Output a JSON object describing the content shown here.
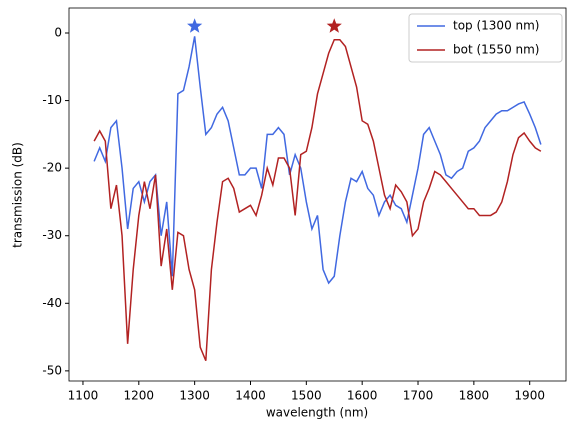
{
  "chart_data": {
    "type": "line",
    "xlabel": "wavelength (nm)",
    "ylabel": "transmission (dB)",
    "x": [
      1120,
      1130,
      1140,
      1150,
      1160,
      1170,
      1180,
      1190,
      1200,
      1210,
      1220,
      1230,
      1240,
      1250,
      1260,
      1270,
      1280,
      1290,
      1300,
      1310,
      1320,
      1330,
      1340,
      1350,
      1360,
      1370,
      1380,
      1390,
      1400,
      1410,
      1420,
      1430,
      1440,
      1450,
      1460,
      1470,
      1480,
      1490,
      1500,
      1510,
      1520,
      1530,
      1540,
      1550,
      1560,
      1570,
      1580,
      1590,
      1600,
      1610,
      1620,
      1630,
      1640,
      1650,
      1660,
      1670,
      1680,
      1690,
      1700,
      1710,
      1720,
      1730,
      1740,
      1750,
      1760,
      1770,
      1780,
      1790,
      1800,
      1810,
      1820,
      1830,
      1840,
      1850,
      1860,
      1870,
      1880,
      1890,
      1900,
      1910,
      1920
    ],
    "series": [
      {
        "name": "top (1300 nm)",
        "color": "#4169e1",
        "values": [
          -19,
          -17,
          -19,
          -14,
          -13,
          -20,
          -29,
          -23,
          -22,
          -25,
          -22,
          -21,
          -30,
          -25,
          -36,
          -9,
          -8.5,
          -5,
          -0.5,
          -8,
          -15,
          -14,
          -12,
          -11,
          -13,
          -17,
          -21,
          -21,
          -20,
          -20,
          -23,
          -15,
          -15,
          -14,
          -15,
          -21,
          -18,
          -20,
          -25,
          -29,
          -27,
          -35,
          -37,
          -36,
          -30,
          -25,
          -21.5,
          -22,
          -20.5,
          -23,
          -24,
          -27,
          -25,
          -24,
          -25.5,
          -26,
          -28,
          -24,
          -20,
          -15,
          -14,
          -16,
          -18,
          -21,
          -21.5,
          -20.5,
          -20,
          -17.5,
          -17,
          -16,
          -14,
          -13,
          -12,
          -11.5,
          -11.5,
          -11,
          -10.5,
          -10.2,
          -12,
          -14,
          -16.5
        ]
      },
      {
        "name": "bot (1550 nm)",
        "color": "#b22222",
        "values": [
          -16,
          -14.5,
          -16,
          -26,
          -22.5,
          -30,
          -46,
          -35,
          -27,
          -22,
          -26,
          -21,
          -34.5,
          -29,
          -38,
          -29.5,
          -30,
          -35,
          -38,
          -46.5,
          -48.5,
          -35,
          -28,
          -22,
          -21.5,
          -23,
          -26.5,
          -26,
          -25.5,
          -27,
          -24,
          -20,
          -22.5,
          -18.5,
          -18.5,
          -20,
          -27,
          -18,
          -17.5,
          -14,
          -9,
          -6,
          -3,
          -1,
          -1,
          -2,
          -5,
          -8,
          -13,
          -13.5,
          -16,
          -20,
          -24,
          -26,
          -22.5,
          -23.5,
          -25,
          -30,
          -29,
          -25,
          -23,
          -20.5,
          -21,
          -22,
          -23,
          -24,
          -25,
          -26,
          -26,
          -27,
          -27,
          -27,
          -26.5,
          -25,
          -22,
          -18,
          -15.5,
          -14.8,
          -16,
          -17,
          -17.5
        ]
      }
    ],
    "markers": [
      {
        "x": 1300,
        "y": 1,
        "color": "#4169e1"
      },
      {
        "x": 1550,
        "y": 1,
        "color": "#b22222"
      }
    ],
    "xlim": [
      1075,
      1965
    ],
    "xticks": [
      1100,
      1200,
      1300,
      1400,
      1500,
      1600,
      1700,
      1800,
      1900
    ],
    "ylim": [
      -51.5,
      3.7
    ],
    "yticks": [
      -50,
      -40,
      -30,
      -20,
      -10,
      0
    ],
    "legend": "upper right"
  }
}
